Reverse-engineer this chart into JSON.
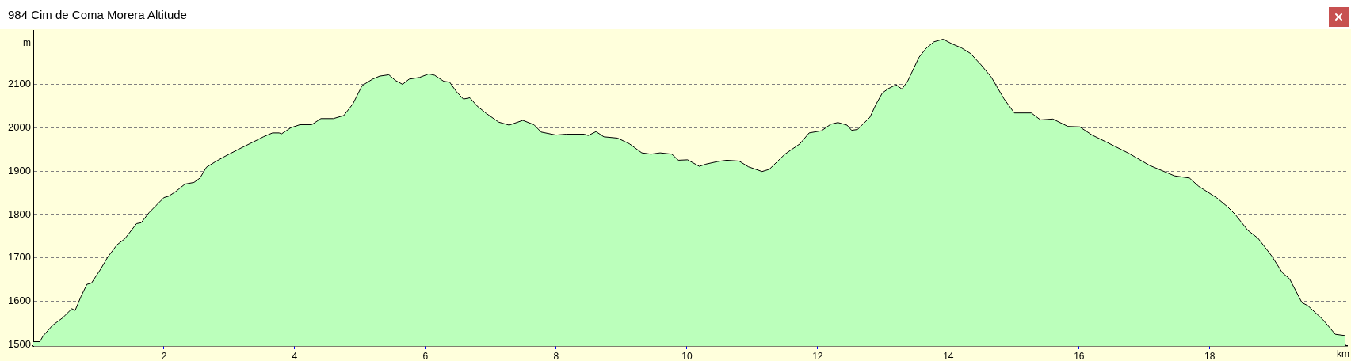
{
  "chart_data": {
    "type": "area",
    "title": "984 Cim de Coma Morera Altitude",
    "xlabel": "km",
    "ylabel": "m",
    "x": [
      0,
      0.1,
      0.15,
      0.29,
      0.45,
      0.59,
      0.64,
      0.73,
      0.82,
      0.89,
      1.03,
      1.14,
      1.28,
      1.4,
      1.58,
      1.65,
      1.77,
      1.88,
      2.0,
      2.07,
      2.18,
      2.32,
      2.46,
      2.55,
      2.65,
      2.78,
      2.92,
      3.15,
      3.43,
      3.52,
      3.66,
      3.76,
      3.8,
      3.94,
      4.08,
      4.26,
      4.4,
      4.59,
      4.75,
      4.89,
      5.03,
      5.19,
      5.3,
      5.44,
      5.54,
      5.65,
      5.75,
      5.91,
      6.05,
      6.14,
      6.28,
      6.37,
      6.47,
      6.58,
      6.68,
      6.79,
      6.93,
      7.12,
      7.28,
      7.49,
      7.66,
      7.77,
      8.0,
      8.15,
      8.43,
      8.49,
      8.61,
      8.73,
      8.94,
      9.12,
      9.31,
      9.45,
      9.59,
      9.77,
      9.87,
      10.01,
      10.19,
      10.29,
      10.47,
      10.61,
      10.8,
      10.94,
      11.15,
      11.26,
      11.5,
      11.73,
      11.87,
      12.06,
      12.2,
      12.31,
      12.45,
      12.52,
      12.61,
      12.8,
      12.89,
      12.99,
      13.08,
      13.2,
      13.29,
      13.38,
      13.55,
      13.66,
      13.78,
      13.92,
      14.06,
      14.2,
      14.34,
      14.5,
      14.66,
      14.85,
      15.01,
      15.27,
      15.41,
      15.6,
      15.83,
      16.01,
      16.2,
      16.43,
      16.76,
      17.08,
      17.46,
      17.69,
      17.83,
      18.11,
      18.27,
      18.39,
      18.58,
      18.74,
      18.95,
      19.11,
      19.22,
      19.41,
      19.5,
      19.73,
      19.92,
      20.07
    ],
    "values": [
      1507,
      1507,
      1520,
      1544,
      1562,
      1583,
      1579,
      1611,
      1639,
      1642,
      1674,
      1702,
      1730,
      1744,
      1779,
      1781,
      1804,
      1821,
      1839,
      1842,
      1853,
      1870,
      1874,
      1884,
      1909,
      1921,
      1933,
      1951,
      1972,
      1979,
      1988,
      1988,
      1986,
      2000,
      2007,
      2007,
      2021,
      2021,
      2028,
      2055,
      2097,
      2112,
      2119,
      2122,
      2109,
      2100,
      2112,
      2116,
      2124,
      2121,
      2107,
      2105,
      2084,
      2066,
      2069,
      2050,
      2033,
      2013,
      2006,
      2017,
      2007,
      1990,
      1983,
      1985,
      1985,
      1982,
      1991,
      1979,
      1976,
      1963,
      1942,
      1939,
      1942,
      1939,
      1925,
      1926,
      1911,
      1916,
      1922,
      1925,
      1923,
      1910,
      1899,
      1904,
      1939,
      1963,
      1988,
      1993,
      2008,
      2012,
      2006,
      1994,
      1996,
      2024,
      2053,
      2080,
      2090,
      2099,
      2089,
      2108,
      2162,
      2183,
      2198,
      2204,
      2193,
      2184,
      2171,
      2145,
      2116,
      2067,
      2034,
      2034,
      2018,
      2020,
      2003,
      2002,
      1983,
      1966,
      1941,
      1913,
      1889,
      1884,
      1865,
      1838,
      1818,
      1800,
      1764,
      1745,
      1704,
      1666,
      1652,
      1597,
      1590,
      1558,
      1524,
      1521
    ],
    "color": "#bbffbb",
    "xlim": [
      0,
      20.1
    ],
    "ylim": [
      1497,
      2225
    ],
    "xticks": [
      2,
      4,
      6,
      8,
      10,
      12,
      14,
      16,
      18
    ],
    "yticks": [
      1500,
      1600,
      1700,
      1800,
      1900,
      2000,
      2100
    ],
    "grid": "y",
    "legend": false,
    "marker": "none"
  }
}
